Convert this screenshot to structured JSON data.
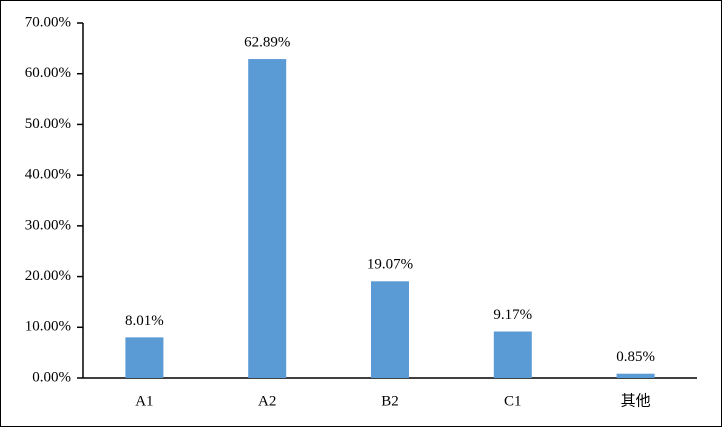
{
  "chart_data": {
    "type": "bar",
    "categories": [
      "A1",
      "A2",
      "B2",
      "C1",
      "其他"
    ],
    "values": [
      8.01,
      62.89,
      19.07,
      9.17,
      0.85
    ],
    "value_labels": [
      "8.01%",
      "62.89%",
      "19.07%",
      "9.17%",
      "0.85%"
    ],
    "color": "#5b9bd5",
    "ylim": [
      0,
      70
    ],
    "yticks": [
      {
        "value": 0,
        "label": "0.00%"
      },
      {
        "value": 10,
        "label": "10.00%"
      },
      {
        "value": 20,
        "label": "20.00%"
      },
      {
        "value": 30,
        "label": "30.00%"
      },
      {
        "value": 40,
        "label": "40.00%"
      },
      {
        "value": 50,
        "label": "50.00%"
      },
      {
        "value": 60,
        "label": "60.00%"
      },
      {
        "value": 70,
        "label": "70.00%"
      }
    ],
    "grid": false
  }
}
